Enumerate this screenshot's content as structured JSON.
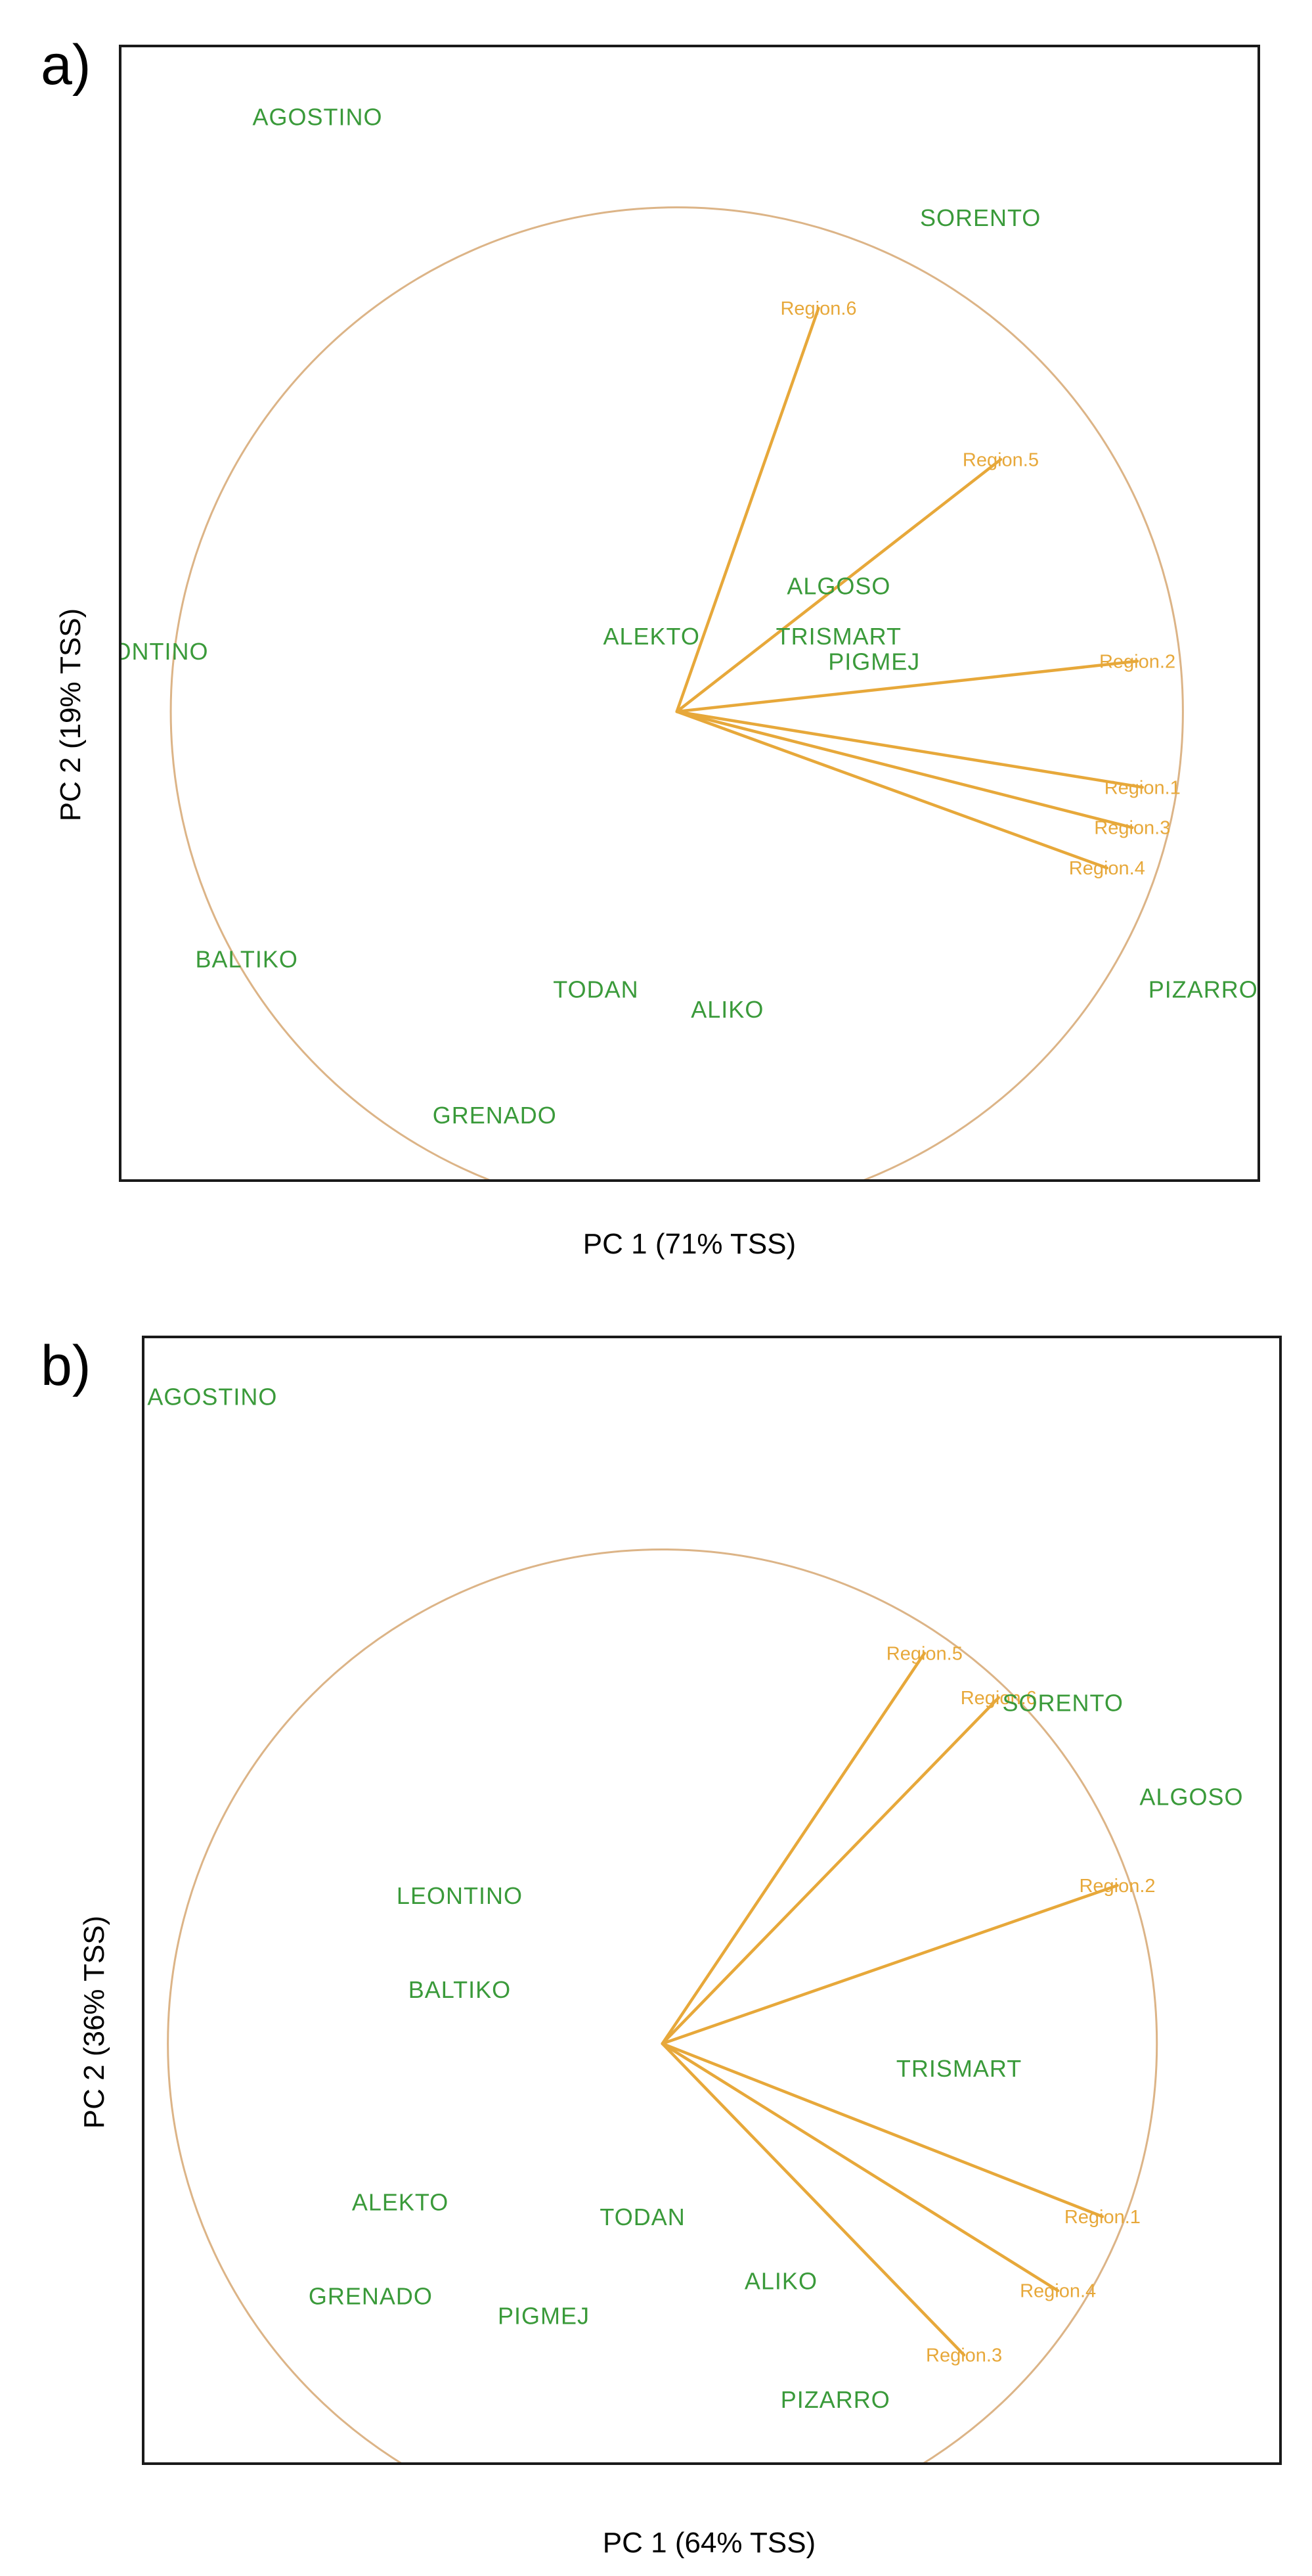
{
  "colors": {
    "observation": "#3a9a3a",
    "variable": "#e7a83a",
    "circle": "#dcb487",
    "frame": "#1a1a1a"
  },
  "chart_data": [
    {
      "type": "scatter",
      "subtype": "biplot",
      "panel_label": "a)",
      "xlabel": "PC 1 (71% TSS)",
      "ylabel": "PC 2 (19% TSS)",
      "xlim": [
        -1.1,
        1.15
      ],
      "ylim": [
        -0.93,
        1.32
      ],
      "origin": [
        0,
        0
      ],
      "circle_radius": 1.0,
      "observations": [
        {
          "label": "AGOSTINO",
          "x": -0.71,
          "y": 1.18
        },
        {
          "label": "SORENTO",
          "x": 0.6,
          "y": 0.98
        },
        {
          "label": "LEONTINO",
          "x": -1.05,
          "y": 0.12
        },
        {
          "label": "ALEKTO",
          "x": -0.05,
          "y": 0.15
        },
        {
          "label": "ALGOSO",
          "x": 0.32,
          "y": 0.25
        },
        {
          "label": "TRISMART",
          "x": 0.32,
          "y": 0.15
        },
        {
          "label": "PIGMEJ",
          "x": 0.39,
          "y": 0.1
        },
        {
          "label": "BALTIKO",
          "x": -0.85,
          "y": -0.49
        },
        {
          "label": "TODAN",
          "x": -0.16,
          "y": -0.55
        },
        {
          "label": "ALIKO",
          "x": 0.1,
          "y": -0.59
        },
        {
          "label": "PIZARRO",
          "x": 1.04,
          "y": -0.55
        },
        {
          "label": "GRENADO",
          "x": -0.36,
          "y": -0.8
        }
      ],
      "variables": [
        {
          "label": "Region.6",
          "x": 0.28,
          "y": 0.8
        },
        {
          "label": "Region.5",
          "x": 0.64,
          "y": 0.5
        },
        {
          "label": "Region.2",
          "x": 0.91,
          "y": 0.1
        },
        {
          "label": "Region.1",
          "x": 0.92,
          "y": -0.15
        },
        {
          "label": "Region.3",
          "x": 0.9,
          "y": -0.23
        },
        {
          "label": "Region.4",
          "x": 0.85,
          "y": -0.31
        }
      ]
    },
    {
      "type": "scatter",
      "subtype": "biplot",
      "panel_label": "b)",
      "xlabel": "PC 1 (64% TSS)",
      "ylabel": "PC 2 (36% TSS)",
      "xlim": [
        -1.05,
        1.25
      ],
      "ylim": [
        -0.85,
        1.43
      ],
      "origin": [
        0,
        0
      ],
      "circle_radius": 1.0,
      "observations": [
        {
          "label": "AGOSTINO",
          "x": -0.91,
          "y": 1.31
        },
        {
          "label": "SORENTO",
          "x": 0.81,
          "y": 0.69
        },
        {
          "label": "ALGOSO",
          "x": 1.07,
          "y": 0.5
        },
        {
          "label": "LEONTINO",
          "x": -0.41,
          "y": 0.3
        },
        {
          "label": "BALTIKO",
          "x": -0.41,
          "y": 0.11
        },
        {
          "label": "TRISMART",
          "x": 0.6,
          "y": -0.05
        },
        {
          "label": "ALEKTO",
          "x": -0.53,
          "y": -0.32
        },
        {
          "label": "TODAN",
          "x": -0.04,
          "y": -0.35
        },
        {
          "label": "GRENADO",
          "x": -0.59,
          "y": -0.51
        },
        {
          "label": "PIGMEJ",
          "x": -0.24,
          "y": -0.55
        },
        {
          "label": "ALIKO",
          "x": 0.24,
          "y": -0.48
        },
        {
          "label": "PIZARRO",
          "x": 0.35,
          "y": -0.72
        }
      ],
      "variables": [
        {
          "label": "Region.5",
          "x": 0.53,
          "y": 0.79
        },
        {
          "label": "Region.6",
          "x": 0.68,
          "y": 0.7
        },
        {
          "label": "Region.2",
          "x": 0.92,
          "y": 0.32
        },
        {
          "label": "Region.1",
          "x": 0.89,
          "y": -0.35
        },
        {
          "label": "Region.4",
          "x": 0.8,
          "y": -0.5
        },
        {
          "label": "Region.3",
          "x": 0.61,
          "y": -0.63
        }
      ]
    }
  ]
}
